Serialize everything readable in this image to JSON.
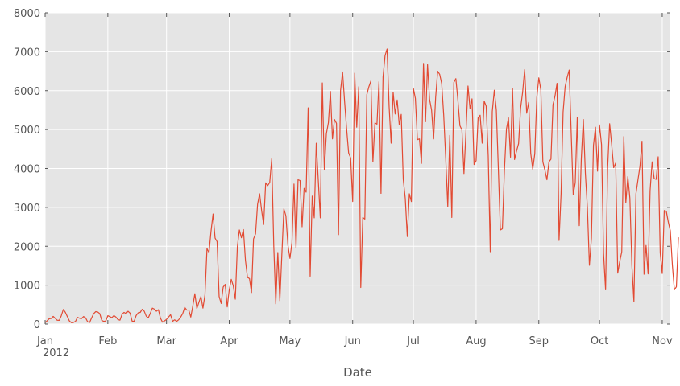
{
  "chart_data": {
    "type": "line",
    "title": "",
    "xlabel": "Date",
    "ylabel": "",
    "x_start": "2012-01-01",
    "x_end": "2012-11-05",
    "ylim": [
      0,
      8000
    ],
    "yticks": [
      0,
      1000,
      2000,
      3000,
      4000,
      5000,
      6000,
      7000,
      8000
    ],
    "xticks": [
      {
        "date": "2012-01-01",
        "label": "Jan",
        "sublabel": "2012"
      },
      {
        "date": "2012-02-01",
        "label": "Feb"
      },
      {
        "date": "2012-03-01",
        "label": "Mar"
      },
      {
        "date": "2012-04-01",
        "label": "Apr"
      },
      {
        "date": "2012-05-01",
        "label": "May"
      },
      {
        "date": "2012-06-01",
        "label": "Jun"
      },
      {
        "date": "2012-07-01",
        "label": "Jul"
      },
      {
        "date": "2012-08-01",
        "label": "Aug"
      },
      {
        "date": "2012-09-01",
        "label": "Sep"
      },
      {
        "date": "2012-10-01",
        "label": "Oct"
      },
      {
        "date": "2012-11-01",
        "label": "Nov"
      }
    ],
    "grid": true,
    "background": "#e5e5e5",
    "grid_color": "#ffffff",
    "line_color": "#e24a33",
    "series": [
      {
        "values": [
          [
            0,
            35
          ],
          [
            1,
            83
          ],
          [
            2,
            135
          ],
          [
            3,
            144
          ],
          [
            4,
            197
          ],
          [
            5,
            146
          ],
          [
            6,
            98
          ],
          [
            7,
            95
          ],
          [
            8,
            215
          ],
          [
            9,
            375
          ],
          [
            10,
            303
          ],
          [
            11,
            192
          ],
          [
            12,
            80
          ],
          [
            13,
            35
          ],
          [
            14,
            42
          ],
          [
            15,
            68
          ],
          [
            16,
            172
          ],
          [
            17,
            150
          ],
          [
            18,
            140
          ],
          [
            19,
            193
          ],
          [
            20,
            160
          ],
          [
            21,
            60
          ],
          [
            22,
            40
          ],
          [
            23,
            160
          ],
          [
            24,
            268
          ],
          [
            25,
            320
          ],
          [
            26,
            310
          ],
          [
            27,
            270
          ],
          [
            28,
            95
          ],
          [
            29,
            68
          ],
          [
            30,
            80
          ],
          [
            31,
            215
          ],
          [
            32,
            190
          ],
          [
            33,
            165
          ],
          [
            34,
            220
          ],
          [
            35,
            180
          ],
          [
            36,
            115
          ],
          [
            37,
            100
          ],
          [
            38,
            250
          ],
          [
            39,
            300
          ],
          [
            40,
            270
          ],
          [
            41,
            330
          ],
          [
            42,
            280
          ],
          [
            43,
            75
          ],
          [
            44,
            70
          ],
          [
            45,
            220
          ],
          [
            46,
            290
          ],
          [
            47,
            300
          ],
          [
            48,
            380
          ],
          [
            49,
            330
          ],
          [
            50,
            200
          ],
          [
            51,
            160
          ],
          [
            52,
            280
          ],
          [
            53,
            410
          ],
          [
            54,
            385
          ],
          [
            55,
            330
          ],
          [
            56,
            370
          ],
          [
            57,
            150
          ],
          [
            58,
            50
          ],
          [
            59,
            80
          ],
          [
            60,
            120
          ],
          [
            61,
            180
          ],
          [
            62,
            240
          ],
          [
            63,
            70
          ],
          [
            64,
            110
          ],
          [
            65,
            70
          ],
          [
            66,
            110
          ],
          [
            67,
            180
          ],
          [
            68,
            270
          ],
          [
            69,
            430
          ],
          [
            70,
            360
          ],
          [
            71,
            360
          ],
          [
            72,
            180
          ],
          [
            73,
            470
          ],
          [
            74,
            780
          ],
          [
            75,
            400
          ],
          [
            76,
            560
          ],
          [
            77,
            710
          ],
          [
            78,
            410
          ],
          [
            79,
            750
          ],
          [
            80,
            1940
          ],
          [
            81,
            1840
          ],
          [
            82,
            2390
          ],
          [
            83,
            2830
          ],
          [
            84,
            2210
          ],
          [
            85,
            2120
          ],
          [
            86,
            710
          ],
          [
            87,
            530
          ],
          [
            88,
            950
          ],
          [
            89,
            1020
          ],
          [
            90,
            440
          ],
          [
            91,
            880
          ],
          [
            92,
            1150
          ],
          [
            93,
            980
          ],
          [
            94,
            640
          ],
          [
            95,
            1980
          ],
          [
            96,
            2420
          ],
          [
            97,
            2220
          ],
          [
            98,
            2430
          ],
          [
            99,
            1640
          ],
          [
            100,
            1200
          ],
          [
            101,
            1170
          ],
          [
            102,
            810
          ],
          [
            103,
            2190
          ],
          [
            104,
            2320
          ],
          [
            105,
            3080
          ],
          [
            106,
            3350
          ],
          [
            107,
            2920
          ],
          [
            108,
            2560
          ],
          [
            109,
            3630
          ],
          [
            110,
            3560
          ],
          [
            111,
            3640
          ],
          [
            112,
            4250
          ],
          [
            113,
            2020
          ],
          [
            114,
            520
          ],
          [
            115,
            1840
          ],
          [
            116,
            600
          ],
          [
            117,
            1790
          ],
          [
            118,
            2960
          ],
          [
            119,
            2780
          ],
          [
            120,
            2030
          ],
          [
            121,
            1690
          ],
          [
            122,
            2100
          ],
          [
            123,
            3600
          ],
          [
            124,
            1950
          ],
          [
            125,
            3710
          ],
          [
            126,
            3690
          ],
          [
            127,
            2500
          ],
          [
            128,
            3490
          ],
          [
            129,
            3390
          ],
          [
            130,
            5560
          ],
          [
            131,
            1230
          ],
          [
            132,
            3290
          ],
          [
            133,
            2730
          ],
          [
            134,
            4650
          ],
          [
            135,
            3700
          ],
          [
            136,
            2730
          ],
          [
            137,
            6200
          ],
          [
            138,
            3960
          ],
          [
            139,
            4890
          ],
          [
            140,
            5180
          ],
          [
            141,
            5980
          ],
          [
            142,
            4760
          ],
          [
            143,
            5260
          ],
          [
            144,
            5160
          ],
          [
            145,
            2300
          ],
          [
            146,
            6000
          ],
          [
            147,
            6480
          ],
          [
            148,
            5720
          ],
          [
            149,
            5020
          ],
          [
            150,
            4400
          ],
          [
            151,
            4270
          ],
          [
            152,
            3150
          ],
          [
            153,
            6450
          ],
          [
            154,
            5060
          ],
          [
            155,
            6100
          ],
          [
            156,
            940
          ],
          [
            157,
            2740
          ],
          [
            158,
            2700
          ],
          [
            159,
            5900
          ],
          [
            160,
            6100
          ],
          [
            161,
            6250
          ],
          [
            162,
            4170
          ],
          [
            163,
            5170
          ],
          [
            164,
            5140
          ],
          [
            165,
            6230
          ],
          [
            166,
            3360
          ],
          [
            167,
            6350
          ],
          [
            168,
            6900
          ],
          [
            169,
            7070
          ],
          [
            170,
            5600
          ],
          [
            171,
            4650
          ],
          [
            172,
            5960
          ],
          [
            173,
            5400
          ],
          [
            174,
            5760
          ],
          [
            175,
            5130
          ],
          [
            176,
            5390
          ],
          [
            177,
            3720
          ],
          [
            178,
            3230
          ],
          [
            179,
            2250
          ],
          [
            180,
            3350
          ],
          [
            181,
            3150
          ],
          [
            182,
            6060
          ],
          [
            183,
            5800
          ],
          [
            184,
            4740
          ],
          [
            185,
            4760
          ],
          [
            186,
            4130
          ],
          [
            187,
            6700
          ],
          [
            188,
            5200
          ],
          [
            189,
            6670
          ],
          [
            190,
            5780
          ],
          [
            191,
            5500
          ],
          [
            192,
            4760
          ],
          [
            193,
            5820
          ],
          [
            194,
            6500
          ],
          [
            195,
            6420
          ],
          [
            196,
            6180
          ],
          [
            197,
            5360
          ],
          [
            198,
            4250
          ],
          [
            199,
            3020
          ],
          [
            200,
            4850
          ],
          [
            201,
            2740
          ],
          [
            202,
            6210
          ],
          [
            203,
            6310
          ],
          [
            204,
            5760
          ],
          [
            205,
            5100
          ],
          [
            206,
            4990
          ],
          [
            207,
            3870
          ],
          [
            208,
            4950
          ],
          [
            209,
            6120
          ],
          [
            210,
            5540
          ],
          [
            211,
            5790
          ],
          [
            212,
            4100
          ],
          [
            213,
            4200
          ],
          [
            214,
            5300
          ],
          [
            215,
            5370
          ],
          [
            216,
            4650
          ],
          [
            217,
            5730
          ],
          [
            218,
            5600
          ],
          [
            219,
            4320
          ],
          [
            220,
            1860
          ],
          [
            221,
            5460
          ],
          [
            222,
            6010
          ],
          [
            223,
            5500
          ],
          [
            224,
            3980
          ],
          [
            225,
            2420
          ],
          [
            226,
            2450
          ],
          [
            227,
            3950
          ],
          [
            228,
            5010
          ],
          [
            229,
            5300
          ],
          [
            230,
            4290
          ],
          [
            231,
            6060
          ],
          [
            232,
            4230
          ],
          [
            233,
            4450
          ],
          [
            234,
            4640
          ],
          [
            235,
            5550
          ],
          [
            236,
            5960
          ],
          [
            237,
            6540
          ],
          [
            238,
            5420
          ],
          [
            239,
            5700
          ],
          [
            240,
            4390
          ],
          [
            241,
            3980
          ],
          [
            242,
            4380
          ],
          [
            243,
            5820
          ],
          [
            244,
            6330
          ],
          [
            245,
            6020
          ],
          [
            246,
            4170
          ],
          [
            247,
            3960
          ],
          [
            248,
            3710
          ],
          [
            249,
            4170
          ],
          [
            250,
            4240
          ],
          [
            251,
            5640
          ],
          [
            252,
            5860
          ],
          [
            253,
            6190
          ],
          [
            254,
            2150
          ],
          [
            255,
            3350
          ],
          [
            256,
            5450
          ],
          [
            257,
            6100
          ],
          [
            258,
            6340
          ],
          [
            259,
            6530
          ],
          [
            260,
            4920
          ],
          [
            261,
            3330
          ],
          [
            262,
            3630
          ],
          [
            263,
            5310
          ],
          [
            264,
            2530
          ],
          [
            265,
            4260
          ],
          [
            266,
            5260
          ],
          [
            267,
            3880
          ],
          [
            268,
            3000
          ],
          [
            269,
            1510
          ],
          [
            270,
            2210
          ],
          [
            271,
            4590
          ],
          [
            272,
            5060
          ],
          [
            273,
            3930
          ],
          [
            274,
            5120
          ],
          [
            275,
            4610
          ],
          [
            276,
            1810
          ],
          [
            277,
            880
          ],
          [
            278,
            4000
          ],
          [
            279,
            5150
          ],
          [
            280,
            4620
          ],
          [
            281,
            4020
          ],
          [
            282,
            4140
          ],
          [
            283,
            1310
          ],
          [
            284,
            1610
          ],
          [
            285,
            1860
          ],
          [
            286,
            4820
          ],
          [
            287,
            3120
          ],
          [
            288,
            3790
          ],
          [
            289,
            3240
          ],
          [
            290,
            1500
          ],
          [
            291,
            580
          ],
          [
            292,
            3350
          ],
          [
            293,
            3710
          ],
          [
            294,
            4060
          ],
          [
            295,
            4700
          ],
          [
            296,
            1280
          ],
          [
            297,
            2020
          ],
          [
            298,
            1290
          ],
          [
            299,
            3430
          ],
          [
            300,
            4170
          ],
          [
            301,
            3740
          ],
          [
            302,
            3720
          ],
          [
            303,
            4300
          ],
          [
            304,
            1830
          ],
          [
            305,
            1300
          ],
          [
            306,
            2920
          ],
          [
            307,
            2900
          ],
          [
            308,
            2620
          ],
          [
            309,
            2400
          ],
          [
            310,
            1520
          ],
          [
            311,
            880
          ],
          [
            312,
            960
          ],
          [
            313,
            2230
          ]
        ]
      }
    ]
  }
}
